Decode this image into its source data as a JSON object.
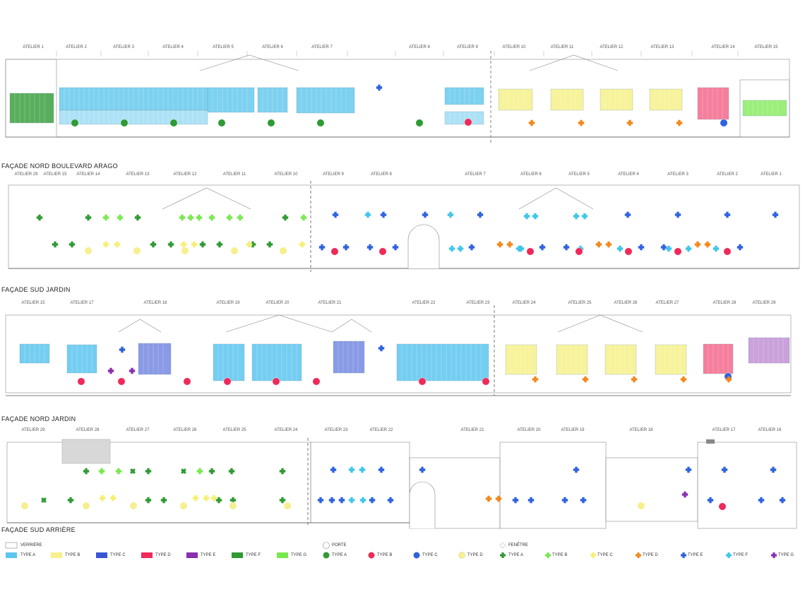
{
  "facades": [
    {
      "title": "FAÇADE NORD BOULEVARD ARAGO",
      "ateliers": [
        "ATELIER 1",
        "ATELIER 2",
        "ATELIER 3",
        "ATELIER 4",
        "ATELIER 5",
        "ATELIER 6",
        "ATELIER 7",
        "ATELIER 8",
        "ATELIER 9",
        "ATELIER 10",
        "ATELIER 11",
        "ATELIER 12",
        "ATELIER 13",
        "ATELIER 14",
        "ATELIER 15"
      ]
    },
    {
      "title": "FAÇADE SUD JARDIN",
      "ateliers": [
        "ATELIER 29",
        "ATELIER 15",
        "ATELIER 14",
        "ATELIER 13",
        "ATELIER 12",
        "ATELIER 11",
        "ATELIER 10",
        "ATELIER 9",
        "ATELIER 8",
        "ATELIER 7",
        "ATELIER 6",
        "ATELIER 5",
        "ATELIER 4",
        "ATELIER 3",
        "ATELIER 2",
        "ATELIER 1"
      ]
    },
    {
      "title": "FAÇADE NORD JARDIN",
      "ateliers": [
        "ATELIER 15",
        "ATELIER 17",
        "ATELIER 18",
        "ATELIER 19",
        "ATELIER 20",
        "ATELIER 21",
        "ATELIER 22",
        "ATELIER 23",
        "ATELIER 24",
        "ATELIER 25",
        "ATELIER 26",
        "ATELIER 27",
        "ATELIER 28",
        "ATELIER 29"
      ]
    },
    {
      "title": "FAÇADE SUD ARRIÈRE",
      "ateliers": [
        "ATELIER 29",
        "ATELIER 28",
        "ATELIER 27",
        "ATELIER 26",
        "ATELIER 25",
        "ATELIER 24",
        "ATELIER 23",
        "ATELIER 22",
        "ATELIER 21",
        "ATELIER 20",
        "ATELIER 19",
        "ATELIER 18",
        "ATELIER 17",
        "ATELIER 16"
      ]
    }
  ],
  "legend": {
    "verriere": {
      "label": "VERRIÈRE"
    },
    "porte": {
      "label": "PORTE"
    },
    "fenetre": {
      "label": "FENÊTRE"
    },
    "verriere_types": [
      {
        "label": "TYPE A",
        "color": "#5cc6ee"
      },
      {
        "label": "TYPE B",
        "color": "#f6f18a"
      },
      {
        "label": "TYPE C",
        "color": "#3a56d6"
      },
      {
        "label": "TYPE D",
        "color": "#ee2a5a"
      },
      {
        "label": "TYPE E",
        "color": "#8a2fb0"
      },
      {
        "label": "TYPE F",
        "color": "#2f9a34"
      },
      {
        "label": "TYPE G",
        "color": "#79e84f"
      }
    ],
    "porte_types": [
      {
        "label": "TYPE A",
        "color": "#2f9a34"
      },
      {
        "label": "TYPE B",
        "color": "#ee2a5a"
      },
      {
        "label": "TYPE C",
        "color": "#2f62e0"
      },
      {
        "label": "TYPE D",
        "color": "#f6ef90"
      }
    ],
    "fenetre_types": [
      {
        "label": "TYPE A",
        "color": "#2f9a34"
      },
      {
        "label": "TYPE B",
        "color": "#79e84f"
      },
      {
        "label": "TYPE C",
        "color": "#f6ef70"
      },
      {
        "label": "TYPE D",
        "color": "#f2881c"
      },
      {
        "label": "TYPE E",
        "color": "#2f62e0"
      },
      {
        "label": "TYPE F",
        "color": "#3fc6ea"
      },
      {
        "label": "TYPE G",
        "color": "#8a2fb0"
      }
    ]
  }
}
